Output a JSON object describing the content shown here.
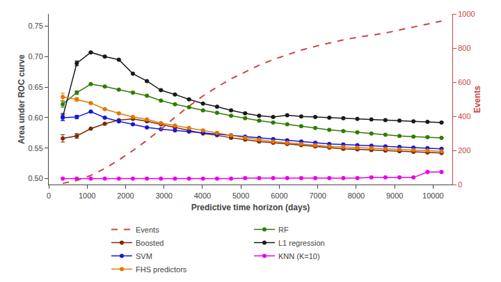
{
  "chart_data": {
    "type": "line",
    "x": [
      365,
      730,
      1095,
      1460,
      1825,
      2190,
      2555,
      2920,
      3285,
      3650,
      4015,
      4380,
      4745,
      5110,
      5475,
      5840,
      6205,
      6570,
      6935,
      7300,
      7665,
      8030,
      8395,
      8760,
      9125,
      9490,
      9855,
      10220
    ],
    "xlabel": "Predictive time horizon (days)",
    "ylabel": "Area under ROC curve",
    "y2label": "Events",
    "xlim": [
      0,
      10500
    ],
    "xticks": [
      0,
      1000,
      2000,
      3000,
      4000,
      5000,
      6000,
      7000,
      8000,
      9000,
      10000
    ],
    "ylim": [
      0.49,
      0.77
    ],
    "yticks": [
      {
        "value": 0.5,
        "label": "0.50"
      },
      0.55,
      {
        "value": 0.6,
        "label": "0.60"
      },
      0.65,
      {
        "value": 0.7,
        "label": "0.70"
      },
      0.75
    ],
    "y2lim": [
      0,
      1000
    ],
    "y2ticks": [
      0,
      200,
      400,
      600,
      800,
      1000
    ],
    "grid": false,
    "legend": "bottom",
    "series": [
      {
        "name": "Events",
        "color": "#cc4444",
        "axis": "y2",
        "marker": "none",
        "line_style": "dashed",
        "values": [
          8,
          25,
          55,
          95,
          145,
          200,
          260,
          325,
          395,
          460,
          520,
          572,
          620,
          660,
          700,
          733,
          762,
          788,
          810,
          830,
          848,
          863,
          876,
          888,
          906,
          924,
          942,
          958
        ]
      },
      {
        "name": "RF",
        "color": "#2d7d00",
        "marker": "circle",
        "line_style": "solid",
        "values": [
          0.622,
          0.641,
          0.655,
          0.651,
          0.646,
          0.641,
          0.636,
          0.628,
          0.622,
          0.617,
          0.612,
          0.608,
          0.603,
          0.599,
          0.595,
          0.592,
          0.589,
          0.586,
          0.583,
          0.58,
          0.578,
          0.576,
          0.574,
          0.572,
          0.57,
          0.569,
          0.568,
          0.567
        ],
        "errors": [
          0.005,
          0.003,
          null,
          null,
          null,
          null,
          null,
          null,
          null,
          null,
          null,
          null,
          null,
          null,
          null,
          null,
          null,
          null,
          null,
          null,
          null,
          null,
          null,
          null,
          null,
          null,
          null,
          null
        ]
      },
      {
        "name": "Boosted",
        "color": "#7b2800",
        "marker": "circle",
        "line_style": "solid",
        "values": [
          0.566,
          0.57,
          0.582,
          0.59,
          0.596,
          0.598,
          0.594,
          0.589,
          0.584,
          0.579,
          0.574,
          0.571,
          0.567,
          0.564,
          0.561,
          0.559,
          0.557,
          0.555,
          0.553,
          0.551,
          0.549,
          0.548,
          0.547,
          0.546,
          0.545,
          0.544,
          0.543,
          0.542
        ],
        "errors": [
          0.006,
          0.004,
          null,
          null,
          null,
          null,
          null,
          null,
          null,
          null,
          null,
          null,
          null,
          null,
          null,
          null,
          null,
          null,
          null,
          null,
          null,
          null,
          null,
          null,
          null,
          null,
          null,
          null
        ]
      },
      {
        "name": "L1 regression",
        "color": "#1a1a1a",
        "marker": "circle",
        "line_style": "solid",
        "values": [
          0.601,
          0.689,
          0.707,
          0.7,
          0.695,
          0.672,
          0.66,
          0.645,
          0.638,
          0.63,
          0.623,
          0.618,
          0.612,
          0.607,
          0.603,
          0.601,
          0.604,
          0.602,
          0.601,
          0.6,
          0.599,
          0.598,
          0.597,
          0.596,
          0.595,
          0.594,
          0.593,
          0.592
        ],
        "errors": [
          0.006,
          0.004,
          null,
          null,
          null,
          null,
          null,
          null,
          null,
          null,
          null,
          null,
          null,
          null,
          null,
          null,
          null,
          null,
          null,
          null,
          null,
          null,
          null,
          null,
          null,
          null,
          null,
          null
        ]
      },
      {
        "name": "SVM",
        "color": "#1515e0",
        "marker": "circle",
        "line_style": "solid",
        "values": [
          0.6,
          0.601,
          0.61,
          0.6,
          0.594,
          0.589,
          0.584,
          0.581,
          0.579,
          0.577,
          0.575,
          0.573,
          0.571,
          0.569,
          0.567,
          0.565,
          0.563,
          0.561,
          0.559,
          0.557,
          0.556,
          0.555,
          0.554,
          0.553,
          0.552,
          0.551,
          0.55,
          0.549
        ],
        "errors": [
          0.005,
          0.003,
          null,
          null,
          null,
          null,
          null,
          null,
          null,
          null,
          null,
          null,
          null,
          null,
          null,
          null,
          null,
          null,
          null,
          null,
          null,
          null,
          null,
          null,
          null,
          null,
          null,
          null
        ]
      },
      {
        "name": "KNN (K=10)",
        "color": "#e800e8",
        "marker": "circle",
        "line_style": "solid",
        "values": [
          0.5,
          0.5,
          0.5,
          0.5,
          0.5,
          0.5,
          0.5,
          0.5,
          0.5,
          0.5,
          0.5,
          0.5,
          0.5,
          0.501,
          0.501,
          0.501,
          0.501,
          0.501,
          0.501,
          0.501,
          0.501,
          0.501,
          0.502,
          0.502,
          0.502,
          0.502,
          0.511,
          0.511
        ]
      },
      {
        "name": "FHS predictors",
        "color": "#e07800",
        "marker": "circle",
        "line_style": "solid",
        "values": [
          0.634,
          0.63,
          0.624,
          0.614,
          0.607,
          0.601,
          0.597,
          0.591,
          0.587,
          0.583,
          0.579,
          0.575,
          0.571,
          0.567,
          0.564,
          0.561,
          0.559,
          0.557,
          0.555,
          0.553,
          0.552,
          0.551,
          0.55,
          0.549,
          0.548,
          0.547,
          0.546,
          0.545
        ],
        "errors": [
          0.006,
          0.003,
          null,
          null,
          null,
          null,
          null,
          null,
          null,
          null,
          null,
          null,
          null,
          null,
          null,
          null,
          null,
          null,
          null,
          null,
          null,
          null,
          null,
          null,
          null,
          null,
          null,
          null
        ]
      }
    ]
  }
}
